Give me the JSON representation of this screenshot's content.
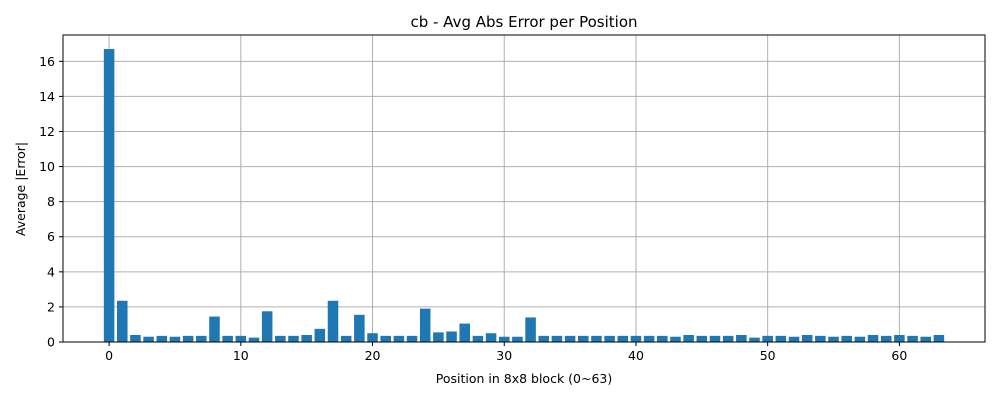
{
  "chart_data": {
    "type": "bar",
    "title": "cb - Avg Abs Error per Position",
    "xlabel": "Position in 8x8 block (0~63)",
    "ylabel": "Average |Error|",
    "xlim": [
      -3.5,
      66.5
    ],
    "ylim": [
      0,
      17.5
    ],
    "xticks": [
      0,
      10,
      20,
      30,
      40,
      50,
      60
    ],
    "yticks": [
      0,
      2,
      4,
      6,
      8,
      10,
      12,
      14,
      16
    ],
    "grid": true,
    "bar_color": "#1f77b4",
    "x": [
      0,
      1,
      2,
      3,
      4,
      5,
      6,
      7,
      8,
      9,
      10,
      11,
      12,
      13,
      14,
      15,
      16,
      17,
      18,
      19,
      20,
      21,
      22,
      23,
      24,
      25,
      26,
      27,
      28,
      29,
      30,
      31,
      32,
      33,
      34,
      35,
      36,
      37,
      38,
      39,
      40,
      41,
      42,
      43,
      44,
      45,
      46,
      47,
      48,
      49,
      50,
      51,
      52,
      53,
      54,
      55,
      56,
      57,
      58,
      59,
      60,
      61,
      62,
      63
    ],
    "values": [
      16.7,
      2.35,
      0.4,
      0.3,
      0.35,
      0.3,
      0.35,
      0.35,
      1.45,
      0.35,
      0.35,
      0.25,
      1.75,
      0.35,
      0.35,
      0.4,
      0.75,
      2.35,
      0.35,
      1.55,
      0.5,
      0.35,
      0.35,
      0.35,
      1.9,
      0.55,
      0.6,
      1.05,
      0.35,
      0.5,
      0.3,
      0.3,
      1.4,
      0.35,
      0.35,
      0.35,
      0.35,
      0.35,
      0.35,
      0.35,
      0.35,
      0.35,
      0.35,
      0.3,
      0.4,
      0.35,
      0.35,
      0.35,
      0.4,
      0.25,
      0.35,
      0.35,
      0.3,
      0.4,
      0.35,
      0.3,
      0.35,
      0.3,
      0.4,
      0.35,
      0.4,
      0.35,
      0.3,
      0.4
    ]
  }
}
